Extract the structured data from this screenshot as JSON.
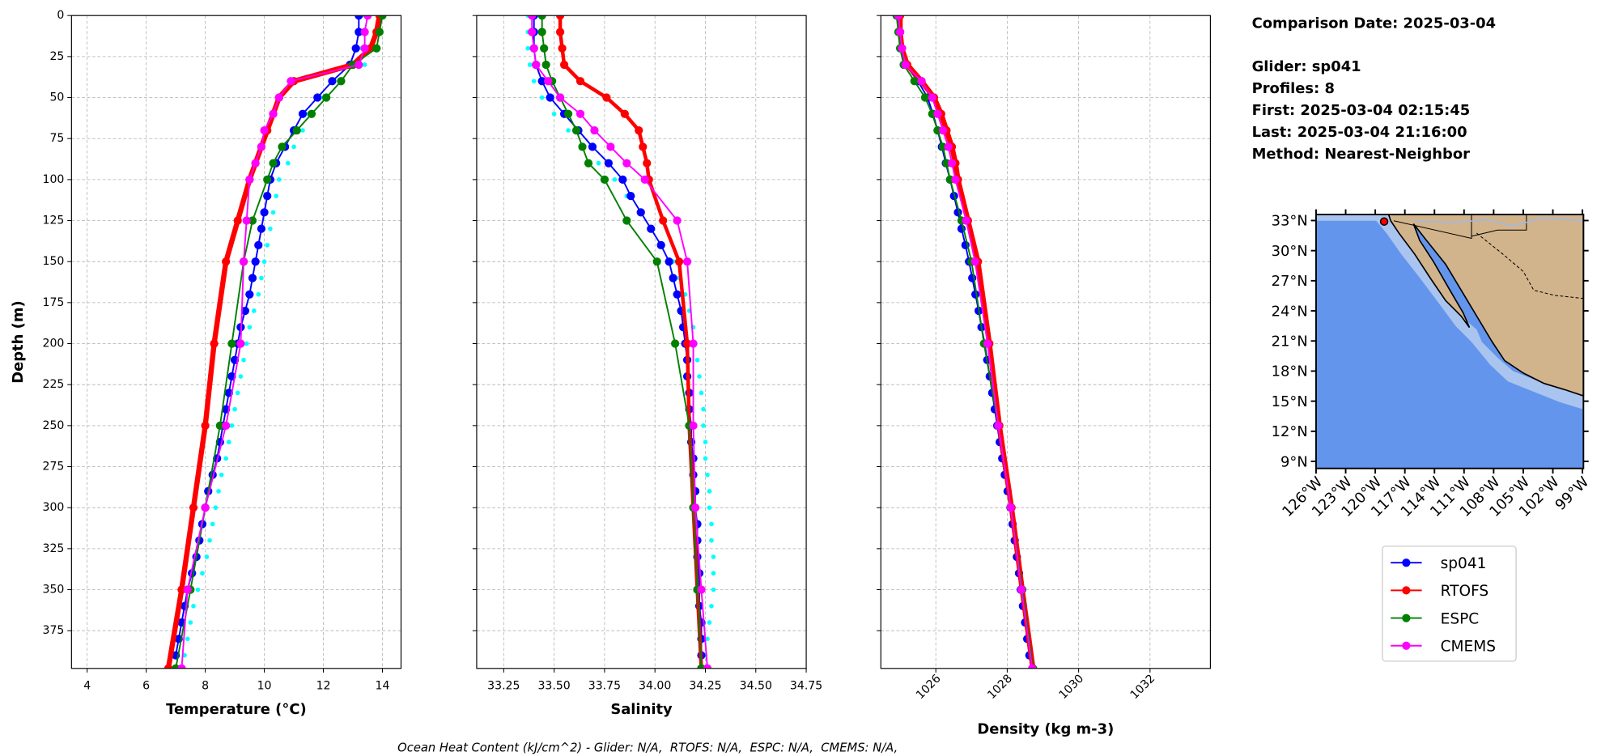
{
  "chart_data": [
    {
      "type": "line",
      "xlabel": "Temperature (°C)",
      "ylabel": "Depth (m)",
      "xlim": [
        3.47,
        14.63
      ],
      "xticks": [
        4,
        6,
        8,
        10,
        12,
        14
      ],
      "ylim": [
        0,
        398
      ],
      "y_inverted": true,
      "yticks": [
        0,
        25,
        50,
        75,
        100,
        125,
        150,
        175,
        200,
        225,
        250,
        275,
        300,
        325,
        350,
        375
      ],
      "ytick_labels": true,
      "grid": true,
      "series": [
        {
          "color": "#00ffff",
          "marker_only": true,
          "linewidth": 0,
          "y": [
            0,
            10,
            20,
            30,
            40,
            50,
            60,
            70,
            80,
            90,
            100,
            110,
            120,
            130,
            140,
            150,
            160,
            170,
            180,
            190,
            200,
            210,
            220,
            230,
            240,
            250,
            260,
            270,
            280,
            290,
            300,
            310,
            320,
            330,
            340,
            350,
            360,
            370,
            380,
            390
          ],
          "values": [
            13.4,
            13.3,
            13.3,
            13.4,
            12.6,
            12.0,
            11.5,
            11.3,
            11.0,
            10.8,
            10.5,
            10.4,
            10.3,
            10.2,
            10.1,
            10.0,
            9.9,
            9.8,
            9.65,
            9.5,
            9.4,
            9.3,
            9.2,
            9.1,
            9.0,
            8.9,
            8.8,
            8.7,
            8.55,
            8.45,
            8.35,
            8.25,
            8.15,
            8.05,
            7.9,
            7.75,
            7.6,
            7.5,
            7.4,
            7.3
          ]
        },
        {
          "name": "sp041",
          "color": "#0000ff",
          "linewidth": 1.5,
          "y": [
            0,
            10,
            20,
            30,
            40,
            50,
            60,
            70,
            80,
            90,
            100,
            110,
            120,
            130,
            140,
            150,
            160,
            170,
            180,
            190,
            200,
            210,
            220,
            230,
            240,
            250,
            260,
            270,
            280,
            290,
            300,
            310,
            320,
            330,
            340,
            350,
            360,
            370,
            380,
            390
          ],
          "values": [
            13.2,
            13.2,
            13.1,
            12.9,
            12.3,
            11.8,
            11.3,
            11.0,
            10.7,
            10.4,
            10.2,
            10.1,
            10.0,
            9.9,
            9.8,
            9.7,
            9.6,
            9.5,
            9.35,
            9.2,
            9.1,
            9.0,
            8.9,
            8.8,
            8.7,
            8.6,
            8.5,
            8.4,
            8.25,
            8.1,
            8.0,
            7.9,
            7.8,
            7.7,
            7.55,
            7.4,
            7.3,
            7.2,
            7.1,
            7.0
          ]
        },
        {
          "name": "RTOFS",
          "color": "#ff0000",
          "linewidth": 5,
          "y": [
            0,
            10,
            20,
            30,
            40,
            50,
            60,
            70,
            80,
            90,
            100,
            125,
            150,
            200,
            250,
            300,
            350,
            398
          ],
          "values": [
            13.9,
            13.8,
            13.6,
            13.0,
            11.0,
            10.5,
            10.3,
            10.1,
            9.9,
            9.7,
            9.5,
            9.1,
            8.7,
            8.3,
            8.0,
            7.6,
            7.2,
            6.75
          ]
        },
        {
          "name": "ESPC",
          "color": "#008000",
          "linewidth": 1.5,
          "y": [
            0,
            10,
            20,
            30,
            40,
            50,
            60,
            70,
            80,
            90,
            100,
            125,
            150,
            200,
            250,
            300,
            350,
            398
          ],
          "values": [
            14.0,
            13.9,
            13.8,
            13.0,
            12.6,
            12.1,
            11.6,
            11.1,
            10.6,
            10.3,
            10.1,
            9.6,
            9.3,
            8.9,
            8.5,
            8.0,
            7.5,
            7.0
          ]
        },
        {
          "name": "CMEMS",
          "color": "#ff00ff",
          "linewidth": 1.5,
          "y": [
            0,
            10,
            20,
            30,
            40,
            50,
            60,
            70,
            80,
            90,
            100,
            125,
            150,
            200,
            250,
            300,
            350,
            398
          ],
          "values": [
            13.5,
            13.4,
            13.4,
            13.2,
            10.9,
            10.5,
            10.3,
            10.0,
            9.9,
            9.7,
            9.5,
            9.4,
            9.3,
            9.2,
            8.7,
            8.0,
            7.4,
            7.2
          ]
        }
      ]
    },
    {
      "type": "line",
      "xlabel": "Salinity",
      "xlim": [
        33.116,
        34.75
      ],
      "xticks": [
        33.25,
        {
          "value": 33.5,
          "label": "33.50"
        },
        33.75,
        {
          "value": 34,
          "label": "34.00"
        },
        34.25,
        {
          "value": 34.5,
          "label": "34.50"
        },
        34.75
      ],
      "ylim": [
        0,
        398
      ],
      "y_inverted": true,
      "yticks": [
        0,
        25,
        50,
        75,
        100,
        125,
        150,
        175,
        200,
        225,
        250,
        275,
        300,
        325,
        350,
        375
      ],
      "grid": true,
      "series": [
        {
          "color": "#00ffff",
          "marker_only": true,
          "linewidth": 0,
          "y": [
            0,
            10,
            20,
            30,
            40,
            50,
            60,
            70,
            80,
            90,
            100,
            110,
            120,
            130,
            140,
            150,
            160,
            170,
            180,
            190,
            200,
            210,
            220,
            230,
            240,
            250,
            260,
            270,
            280,
            290,
            300,
            310,
            320,
            330,
            340,
            350,
            360,
            370,
            380,
            390
          ],
          "values": [
            33.37,
            33.37,
            33.37,
            33.38,
            33.4,
            33.44,
            33.5,
            33.57,
            33.64,
            33.72,
            33.8,
            33.86,
            33.92,
            33.98,
            34.04,
            34.09,
            34.12,
            34.15,
            34.17,
            34.19,
            34.2,
            34.21,
            34.22,
            34.23,
            34.24,
            34.24,
            34.25,
            34.25,
            34.26,
            34.27,
            34.27,
            34.28,
            34.28,
            34.29,
            34.29,
            34.29,
            34.28,
            34.27,
            34.26,
            34.25
          ]
        },
        {
          "name": "sp041",
          "color": "#0000ff",
          "linewidth": 1.5,
          "y": [
            0,
            10,
            20,
            30,
            40,
            50,
            60,
            70,
            80,
            90,
            100,
            110,
            120,
            130,
            140,
            150,
            160,
            170,
            180,
            190,
            200,
            210,
            220,
            230,
            240,
            250,
            260,
            270,
            280,
            290,
            300,
            310,
            320,
            330,
            340,
            350,
            360,
            370,
            380,
            390
          ],
          "values": [
            33.4,
            33.4,
            33.4,
            33.41,
            33.44,
            33.48,
            33.55,
            33.62,
            33.69,
            33.77,
            33.84,
            33.88,
            33.93,
            33.98,
            34.03,
            34.07,
            34.09,
            34.11,
            34.13,
            34.14,
            34.15,
            34.16,
            34.16,
            34.17,
            34.17,
            34.18,
            34.18,
            34.19,
            34.19,
            34.2,
            34.2,
            34.21,
            34.21,
            34.21,
            34.22,
            34.22,
            34.22,
            34.23,
            34.23,
            34.23
          ]
        },
        {
          "name": "RTOFS",
          "color": "#ff0000",
          "linewidth": 3.5,
          "y": [
            0,
            10,
            20,
            30,
            40,
            50,
            60,
            70,
            80,
            90,
            100,
            125,
            150,
            200,
            250,
            300,
            350,
            398
          ],
          "values": [
            33.53,
            33.53,
            33.54,
            33.55,
            33.63,
            33.76,
            33.85,
            33.92,
            33.94,
            33.96,
            33.97,
            34.04,
            34.12,
            34.16,
            34.17,
            34.19,
            34.21,
            34.23
          ]
        },
        {
          "name": "ESPC",
          "color": "#008000",
          "linewidth": 1.5,
          "y": [
            0,
            10,
            20,
            30,
            40,
            50,
            60,
            70,
            80,
            90,
            100,
            125,
            150,
            200,
            250,
            300,
            350,
            398
          ],
          "values": [
            33.44,
            33.44,
            33.45,
            33.46,
            33.49,
            33.53,
            33.57,
            33.61,
            33.64,
            33.67,
            33.75,
            33.86,
            34.01,
            34.1,
            34.17,
            34.19,
            34.21,
            34.23
          ]
        },
        {
          "name": "CMEMS",
          "color": "#ff00ff",
          "linewidth": 1.5,
          "y": [
            0,
            10,
            20,
            30,
            40,
            50,
            60,
            70,
            80,
            90,
            100,
            125,
            150,
            200,
            250,
            300,
            350,
            398
          ],
          "values": [
            33.39,
            33.39,
            33.4,
            33.41,
            33.47,
            33.53,
            33.63,
            33.7,
            33.78,
            33.86,
            33.95,
            34.11,
            34.16,
            34.19,
            34.19,
            34.2,
            34.23,
            34.26
          ]
        }
      ]
    },
    {
      "type": "line",
      "xlabel": "Density (kg m-3)",
      "xlim": [
        1024.46,
        1033.69
      ],
      "xticks": [
        1026,
        1028,
        1030,
        1032
      ],
      "xtick_rotation": 45,
      "ylim": [
        0,
        398
      ],
      "y_inverted": true,
      "yticks": [
        0,
        25,
        50,
        75,
        100,
        125,
        150,
        175,
        200,
        225,
        250,
        275,
        300,
        325,
        350,
        375
      ],
      "grid": true,
      "series": [
        {
          "name": "sp041",
          "color": "#0000ff",
          "linewidth": 1.5,
          "y": [
            0,
            10,
            20,
            30,
            40,
            50,
            60,
            70,
            80,
            90,
            100,
            110,
            120,
            130,
            140,
            150,
            160,
            170,
            180,
            190,
            200,
            210,
            220,
            230,
            240,
            250,
            260,
            270,
            280,
            290,
            300,
            310,
            320,
            330,
            340,
            350,
            360,
            370,
            380,
            390
          ],
          "values": [
            1024.95,
            1025.0,
            1025.05,
            1025.15,
            1025.5,
            1025.77,
            1025.92,
            1026.05,
            1026.17,
            1026.28,
            1026.4,
            1026.51,
            1026.62,
            1026.72,
            1026.83,
            1026.93,
            1027.02,
            1027.11,
            1027.2,
            1027.28,
            1027.37,
            1027.44,
            1027.51,
            1027.58,
            1027.65,
            1027.72,
            1027.79,
            1027.86,
            1027.93,
            1028.01,
            1028.09,
            1028.15,
            1028.21,
            1028.27,
            1028.33,
            1028.38,
            1028.44,
            1028.5,
            1028.56,
            1028.62
          ]
        },
        {
          "name": "RTOFS",
          "color": "#ff0000",
          "linewidth": 5,
          "y": [
            0,
            10,
            20,
            30,
            40,
            50,
            60,
            70,
            80,
            90,
            100,
            125,
            150,
            200,
            250,
            300,
            350,
            398
          ],
          "values": [
            1025.0,
            1025.0,
            1025.05,
            1025.2,
            1025.6,
            1025.95,
            1026.15,
            1026.3,
            1026.45,
            1026.55,
            1026.62,
            1026.9,
            1027.18,
            1027.5,
            1027.78,
            1028.12,
            1028.42,
            1028.72
          ]
        },
        {
          "name": "ESPC",
          "color": "#008000",
          "linewidth": 1.5,
          "y": [
            0,
            10,
            20,
            30,
            40,
            50,
            60,
            70,
            80,
            90,
            100,
            125,
            150,
            200,
            250,
            300,
            350,
            398
          ],
          "values": [
            1024.9,
            1024.95,
            1025.0,
            1025.1,
            1025.4,
            1025.7,
            1025.9,
            1026.05,
            1026.2,
            1026.3,
            1026.4,
            1026.72,
            1027.0,
            1027.35,
            1027.75,
            1028.1,
            1028.42,
            1028.72
          ]
        },
        {
          "name": "CMEMS",
          "color": "#ff00ff",
          "linewidth": 1.5,
          "y": [
            0,
            10,
            20,
            30,
            40,
            50,
            60,
            70,
            80,
            90,
            100,
            125,
            150,
            200,
            250,
            300,
            350,
            398
          ],
          "values": [
            1024.95,
            1025.0,
            1025.05,
            1025.15,
            1025.6,
            1025.9,
            1026.05,
            1026.2,
            1026.35,
            1026.45,
            1026.55,
            1026.85,
            1027.1,
            1027.45,
            1027.75,
            1028.1,
            1028.4,
            1028.7
          ]
        }
      ]
    }
  ],
  "info": [
    "Comparison Date: 2025-03-04",
    "Glider: sp041",
    "Profiles: 8",
    "First: 2025-03-04 02:15:45",
    "Last: 2025-03-04 21:16:00",
    "Method: Nearest-Neighbor"
  ],
  "map": {
    "lonlim": [
      -126,
      -98.9
    ],
    "latlim": [
      8.3,
      33.6
    ],
    "lat_ticks": [
      {
        "value": 33,
        "label": "33°N"
      },
      {
        "value": 30,
        "label": "30°N"
      },
      {
        "value": 27,
        "label": "27°N"
      },
      {
        "value": 24,
        "label": "24°N"
      },
      {
        "value": 21,
        "label": "21°N"
      },
      {
        "value": 18,
        "label": "18°N"
      },
      {
        "value": 15,
        "label": "15°N"
      },
      {
        "value": 12,
        "label": "12°N"
      },
      {
        "value": 9,
        "label": "9°N"
      }
    ],
    "lon_ticks": [
      {
        "value": -126,
        "label": "126°W"
      },
      {
        "value": -123,
        "label": "123°W"
      },
      {
        "value": -120,
        "label": "120°W"
      },
      {
        "value": -117,
        "label": "117°W"
      },
      {
        "value": -114,
        "label": "114°W"
      },
      {
        "value": -111,
        "label": "111°W"
      },
      {
        "value": -108,
        "label": "108°W"
      },
      {
        "value": -105,
        "label": "105°W"
      },
      {
        "value": -102,
        "label": "102°W"
      },
      {
        "value": -99,
        "label": "99°W"
      }
    ],
    "glider_position": {
      "lon": -119.1,
      "lat": 32.9
    }
  },
  "footer": "Ocean Heat Content (kJ/cm^2) - Glider: N/A,  RTOFS: N/A,  ESPC: N/A,  CMEMS: N/A,"
}
